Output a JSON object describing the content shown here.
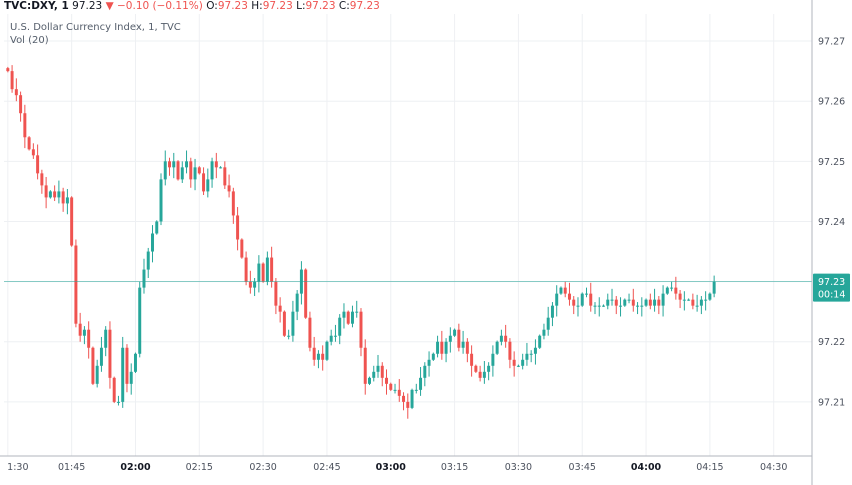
{
  "header": {
    "symbol": "TVC:DXY, 1",
    "price": "97.23",
    "change": "−0.10 (−0.11%)",
    "o_label": "O:",
    "o": "97.23",
    "h_label": "H:",
    "h": "97.23",
    "l_label": "L:",
    "l": "97.23",
    "c_label": "C:",
    "c": "97.23",
    "title": "U.S. Dollar Currency Index, 1, TVC",
    "volume": "Vol (20)"
  },
  "price_badge": {
    "value": "97.23",
    "countdown": "00:14"
  },
  "colors": {
    "up": "#26a69a",
    "down": "#ef5350",
    "grid": "#eef0f3",
    "price_line": "#26a69a"
  },
  "chart_data": {
    "type": "candlestick",
    "title": "U.S. Dollar Currency Index, 1, TVC",
    "y_ticks": [
      "97.27",
      "97.26",
      "97.25",
      "97.24",
      "97.23",
      "97.22",
      "97.21"
    ],
    "y_tick_values": [
      97.27,
      97.26,
      97.25,
      97.24,
      97.23,
      97.22,
      97.21
    ],
    "ylim": [
      97.201,
      97.2745
    ],
    "x_ticks": [
      {
        "label": "1:30",
        "minute": 0,
        "bold": false
      },
      {
        "label": "01:45",
        "minute": 15,
        "bold": false
      },
      {
        "label": "02:00",
        "minute": 30,
        "bold": true
      },
      {
        "label": "02:15",
        "minute": 45,
        "bold": false
      },
      {
        "label": "02:30",
        "minute": 60,
        "bold": false
      },
      {
        "label": "02:45",
        "minute": 75,
        "bold": false
      },
      {
        "label": "03:00",
        "minute": 90,
        "bold": true
      },
      {
        "label": "03:15",
        "minute": 105,
        "bold": false
      },
      {
        "label": "03:30",
        "minute": 120,
        "bold": false
      },
      {
        "label": "03:45",
        "minute": 135,
        "bold": false
      },
      {
        "label": "04:00",
        "minute": 150,
        "bold": true
      },
      {
        "label": "04:15",
        "minute": 165,
        "bold": false
      },
      {
        "label": "04:30",
        "minute": 180,
        "bold": false
      }
    ],
    "xlim_minutes": [
      -0.9,
      189
    ],
    "last_price": 97.23,
    "start_minute": 0,
    "closes": [
      97.265,
      97.262,
      97.261,
      97.258,
      97.254,
      97.252,
      97.251,
      97.248,
      97.246,
      97.244,
      97.245,
      97.244,
      97.245,
      97.243,
      97.244,
      97.236,
      97.223,
      97.221,
      97.222,
      97.219,
      97.213,
      97.216,
      97.219,
      97.222,
      97.214,
      97.21,
      97.21,
      97.219,
      97.213,
      97.215,
      97.218,
      97.229,
      97.232,
      97.235,
      97.238,
      97.24,
      97.247,
      97.25,
      97.249,
      97.25,
      97.247,
      97.249,
      97.25,
      97.247,
      97.249,
      97.248,
      97.245,
      97.247,
      97.25,
      97.249,
      97.249,
      97.246,
      97.245,
      97.241,
      97.237,
      97.234,
      97.23,
      97.229,
      97.23,
      97.233,
      97.23,
      97.234,
      97.23,
      97.226,
      97.225,
      97.221,
      97.221,
      97.225,
      97.228,
      97.232,
      97.224,
      97.219,
      97.217,
      97.218,
      97.217,
      97.22,
      97.221,
      97.221,
      97.224,
      97.225,
      97.223,
      97.225,
      97.225,
      97.219,
      97.213,
      97.214,
      97.215,
      97.216,
      97.214,
      97.213,
      97.212,
      97.212,
      97.211,
      97.21,
      97.209,
      97.212,
      97.212,
      97.214,
      97.216,
      97.217,
      97.218,
      97.22,
      97.218,
      97.22,
      97.221,
      97.222,
      97.219,
      97.22,
      97.218,
      97.216,
      97.215,
      97.214,
      97.215,
      97.216,
      97.218,
      97.22,
      97.221,
      97.22,
      97.217,
      97.216,
      97.216,
      97.217,
      97.218,
      97.218,
      97.219,
      97.221,
      97.222,
      97.224,
      97.226,
      97.228,
      97.229,
      97.228,
      97.227,
      97.226,
      97.226,
      97.228,
      97.228,
      97.226,
      97.226,
      97.226,
      97.226,
      97.227,
      97.227,
      97.226,
      97.226,
      97.227,
      97.227,
      97.226,
      97.226,
      97.226,
      97.227,
      97.226,
      97.227,
      97.226,
      97.228,
      97.229,
      97.229,
      97.228,
      97.227,
      97.227,
      97.227,
      97.226,
      97.226,
      97.227,
      97.227,
      97.228,
      97.23
    ]
  }
}
